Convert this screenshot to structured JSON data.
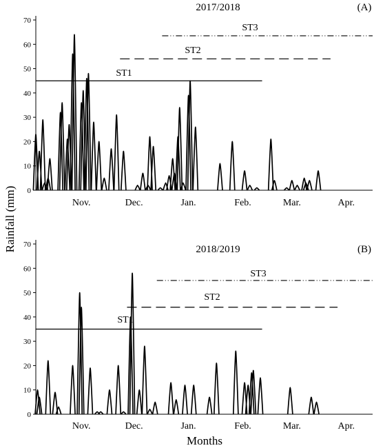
{
  "figure": {
    "ylabel": "Rainfall (mm)",
    "xlabel": "Months"
  },
  "chart_data": [
    {
      "type": "area",
      "title": "2017/2018",
      "panel_label": "(A)",
      "ylim": [
        0,
        70
      ],
      "yticks": [
        0,
        10,
        20,
        30,
        40,
        50,
        60,
        70
      ],
      "x_start": "2017-10-20",
      "x_end": "2018-04-30",
      "months": [
        {
          "label": "Nov.",
          "date": "2017-11-15"
        },
        {
          "label": "Dec.",
          "date": "2017-12-15"
        },
        {
          "label": "Jan.",
          "date": "2018-01-15"
        },
        {
          "label": "Feb.",
          "date": "2018-02-15"
        },
        {
          "label": "Mar.",
          "date": "2018-03-15"
        },
        {
          "label": "Apr.",
          "date": "2018-04-15"
        }
      ],
      "periods": [
        {
          "label": "ST1",
          "value": 45,
          "start": "2017-10-20",
          "end": "2018-02-26",
          "style": "solid"
        },
        {
          "label": "ST2",
          "value": 54,
          "start": "2017-12-07",
          "end": "2018-04-06",
          "style": "dashed"
        },
        {
          "label": "ST3",
          "value": 63.5,
          "start": "2017-12-31",
          "end": "2018-04-30",
          "style": "dashdotdot"
        }
      ],
      "series": [
        {
          "points": [
            [
              "2017-10-20",
              23
            ],
            [
              "2017-10-22",
              16
            ],
            [
              "2017-10-24",
              29
            ],
            [
              "2017-10-25",
              3
            ],
            [
              "2017-10-27",
              5
            ],
            [
              "2017-10-28",
              13
            ],
            [
              "2017-11-03",
              32
            ],
            [
              "2017-11-04",
              36
            ],
            [
              "2017-11-07",
              21
            ],
            [
              "2017-11-08",
              27
            ],
            [
              "2017-11-10",
              56
            ],
            [
              "2017-11-11",
              64
            ],
            [
              "2017-11-15",
              36
            ],
            [
              "2017-11-16",
              41
            ],
            [
              "2017-11-18",
              46
            ],
            [
              "2017-11-19",
              48
            ],
            [
              "2017-11-22",
              28
            ],
            [
              "2017-11-25",
              20
            ],
            [
              "2017-11-28",
              5
            ],
            [
              "2017-12-02",
              17
            ],
            [
              "2017-12-05",
              31
            ],
            [
              "2017-12-09",
              16
            ],
            [
              "2017-12-17",
              2
            ],
            [
              "2017-12-20",
              7
            ],
            [
              "2017-12-23",
              2
            ],
            [
              "2017-12-24",
              22
            ],
            [
              "2017-12-26",
              18
            ],
            [
              "2017-12-30",
              1
            ],
            [
              "2018-01-02",
              3
            ],
            [
              "2018-01-04",
              6
            ],
            [
              "2018-01-06",
              13
            ],
            [
              "2018-01-07",
              7
            ],
            [
              "2018-01-09",
              22
            ],
            [
              "2018-01-10",
              34
            ],
            [
              "2018-01-12",
              3
            ],
            [
              "2018-01-15",
              39
            ],
            [
              "2018-01-16",
              45
            ],
            [
              "2018-01-19",
              26
            ],
            [
              "2018-02-02",
              11
            ],
            [
              "2018-02-09",
              20
            ],
            [
              "2018-02-16",
              8
            ],
            [
              "2018-02-19",
              2
            ],
            [
              "2018-02-23",
              1
            ],
            [
              "2018-03-03",
              21
            ],
            [
              "2018-03-05",
              4
            ],
            [
              "2018-03-12",
              1
            ],
            [
              "2018-03-15",
              4
            ],
            [
              "2018-03-18",
              2
            ],
            [
              "2018-03-22",
              5
            ],
            [
              "2018-03-23",
              3
            ],
            [
              "2018-03-25",
              4
            ],
            [
              "2018-03-30",
              8
            ]
          ]
        }
      ]
    },
    {
      "type": "area",
      "title": "2018/2019",
      "panel_label": "(B)",
      "ylim": [
        0,
        70
      ],
      "yticks": [
        0,
        10,
        20,
        30,
        40,
        50,
        60,
        70
      ],
      "x_start": "2018-10-20",
      "x_end": "2019-04-30",
      "months": [
        {
          "label": "Nov.",
          "date": "2018-11-15"
        },
        {
          "label": "Dec.",
          "date": "2018-12-15"
        },
        {
          "label": "Jan.",
          "date": "2019-01-15"
        },
        {
          "label": "Feb.",
          "date": "2019-02-15"
        },
        {
          "label": "Mar.",
          "date": "2019-03-15"
        },
        {
          "label": "Apr.",
          "date": "2019-04-15"
        }
      ],
      "periods": [
        {
          "label": "ST1",
          "value": 35,
          "start": "2018-10-20",
          "end": "2019-02-26",
          "style": "solid"
        },
        {
          "label": "ST2",
          "value": 44,
          "start": "2018-12-11",
          "end": "2019-04-10",
          "style": "dashed"
        },
        {
          "label": "ST3",
          "value": 55,
          "start": "2018-12-28",
          "end": "2019-04-30",
          "style": "dashdotdot"
        }
      ],
      "series": [
        {
          "points": [
            [
              "2018-10-21",
              10
            ],
            [
              "2018-10-22",
              7
            ],
            [
              "2018-10-27",
              22
            ],
            [
              "2018-10-31",
              9
            ],
            [
              "2018-11-02",
              3
            ],
            [
              "2018-11-10",
              20
            ],
            [
              "2018-11-14",
              50
            ],
            [
              "2018-11-15",
              44
            ],
            [
              "2018-11-20",
              19
            ],
            [
              "2018-11-24",
              1
            ],
            [
              "2018-11-26",
              1
            ],
            [
              "2018-12-01",
              10
            ],
            [
              "2018-12-06",
              20
            ],
            [
              "2018-12-09",
              1
            ],
            [
              "2018-12-13",
              40
            ],
            [
              "2018-12-14",
              58
            ],
            [
              "2018-12-18",
              10
            ],
            [
              "2018-12-21",
              28
            ],
            [
              "2018-12-24",
              2
            ],
            [
              "2018-12-27",
              5
            ],
            [
              "2019-01-05",
              13
            ],
            [
              "2019-01-08",
              6
            ],
            [
              "2019-01-13",
              12
            ],
            [
              "2019-01-18",
              12
            ],
            [
              "2019-01-27",
              7
            ],
            [
              "2019-01-31",
              21
            ],
            [
              "2019-02-11",
              26
            ],
            [
              "2019-02-16",
              13
            ],
            [
              "2019-02-18",
              12
            ],
            [
              "2019-02-20",
              17
            ],
            [
              "2019-02-21",
              18
            ],
            [
              "2019-02-25",
              15
            ],
            [
              "2019-03-14",
              11
            ],
            [
              "2019-03-26",
              7
            ],
            [
              "2019-03-29",
              5
            ]
          ]
        }
      ]
    }
  ]
}
